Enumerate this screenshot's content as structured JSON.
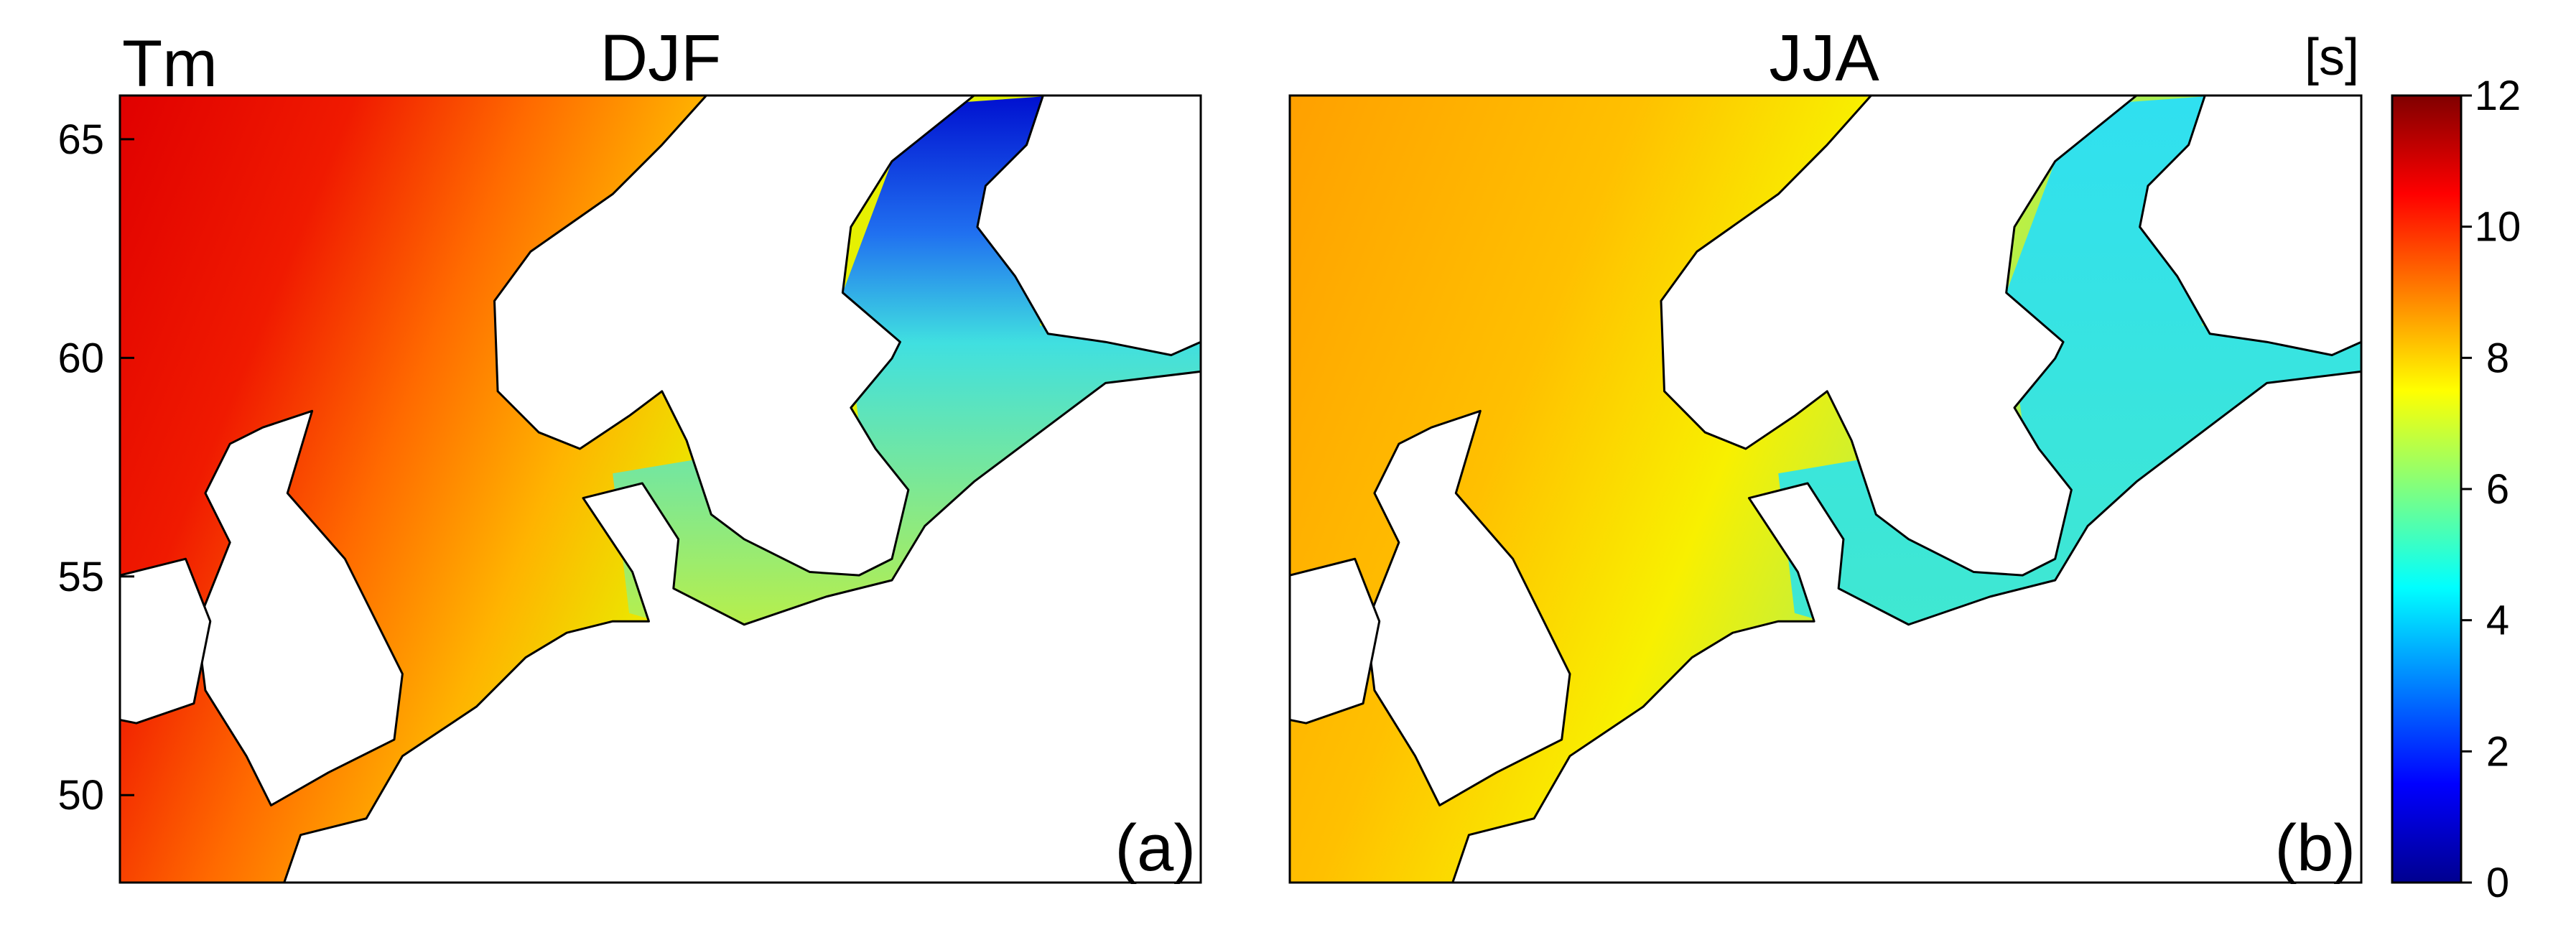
{
  "variable": "Tm",
  "panels": [
    {
      "title": "DJF",
      "label": "(a)"
    },
    {
      "title": "JJA",
      "label": "(b)"
    }
  ],
  "latitude_axis": {
    "lim": [
      48,
      66
    ],
    "ticks": [
      50,
      55,
      60,
      65
    ]
  },
  "colorbar": {
    "unit": "[s]",
    "lim": [
      0,
      12
    ],
    "ticks": [
      0,
      2,
      4,
      6,
      8,
      10,
      12
    ]
  }
}
